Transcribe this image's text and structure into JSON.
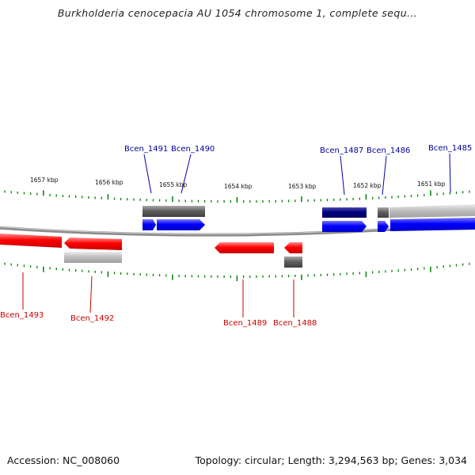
{
  "title": "Burkholderia cenocepacia AU 1054 chromosome 1, complete sequ...",
  "footer": {
    "accession": "Accession: NC_008060",
    "summary": "Topology: circular; Length: 3,294,563 bp; Genes: 3,034"
  },
  "scale_labels": [
    "1657 kbp",
    "1656 kbp",
    "1655 kbp",
    "1654 kbp",
    "1653 kbp",
    "1652 kbp",
    "1651 kbp"
  ],
  "gene_labels_top": [
    "Bcen_1491",
    "Bcen_1490",
    "Bcen_1487",
    "Bcen_1486",
    "Bcen_1485"
  ],
  "gene_labels_bottom": [
    "Bcen_1493",
    "Bcen_1492",
    "Bcen_1489",
    "Bcen_1488"
  ],
  "colors": {
    "forward_gene": "#0000ff",
    "reverse_gene": "#ff0000",
    "forward_gene_dark": "#000080",
    "forward_label": "#000099",
    "reverse_label": "#cc0000",
    "tick": "#008000",
    "backbone": "#808080",
    "feature_dark": "#606060",
    "feature_light": "#c0c0c0"
  }
}
